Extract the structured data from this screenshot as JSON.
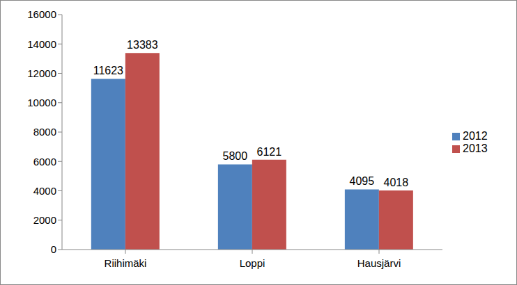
{
  "chart_data": {
    "type": "bar",
    "categories": [
      "Riihimäki",
      "Loppi",
      "Hausjärvi"
    ],
    "series": [
      {
        "name": "2012",
        "color": "#4f81bd",
        "values": [
          11623,
          5800,
          4095
        ]
      },
      {
        "name": "2013",
        "color": "#c0504d",
        "values": [
          13383,
          6121,
          4018
        ]
      }
    ],
    "ylim": [
      0,
      16000
    ],
    "yticks": [
      0,
      2000,
      4000,
      6000,
      8000,
      10000,
      12000,
      14000,
      16000
    ],
    "grid": false,
    "legend": "right",
    "data_labels": true
  }
}
